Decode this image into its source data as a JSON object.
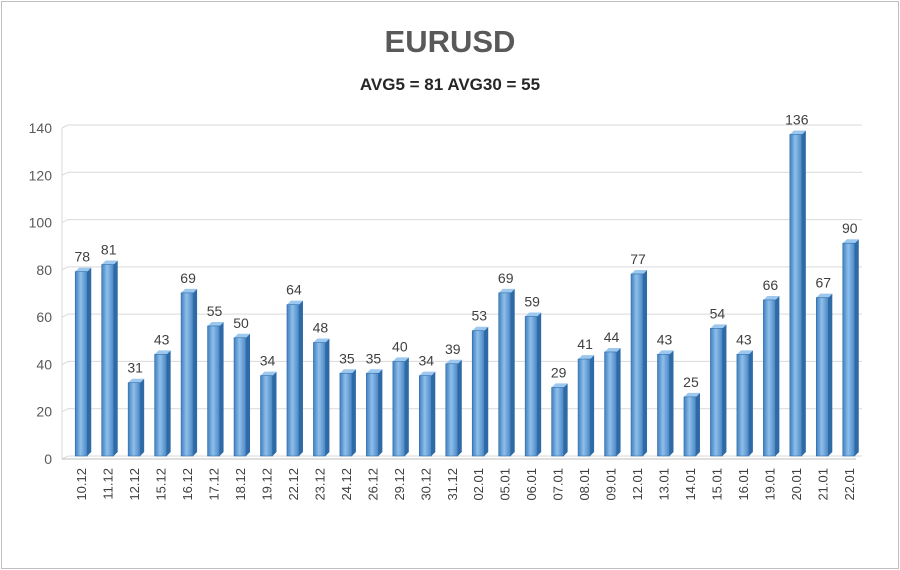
{
  "chart_data": {
    "type": "bar",
    "title": "EURUSD",
    "subtitle": "AVG5 = 81 AVG30 = 55",
    "xlabel": "",
    "ylabel": "",
    "ylim": [
      0,
      140
    ],
    "yticks": [
      0,
      20,
      40,
      60,
      80,
      100,
      120,
      140
    ],
    "grid": true,
    "bar_color": "#5b9bd5",
    "categories": [
      "10.12",
      "11.12",
      "12.12",
      "15.12",
      "16.12",
      "17.12",
      "18.12",
      "19.12",
      "22.12",
      "23.12",
      "24.12",
      "26.12",
      "29.12",
      "30.12",
      "31.12",
      "02.01",
      "05.01",
      "06.01",
      "07.01",
      "08.01",
      "09.01",
      "12.01",
      "13.01",
      "14.01",
      "15.01",
      "16.01",
      "19.01",
      "20.01",
      "21.01",
      "22.01"
    ],
    "values": [
      78,
      81,
      31,
      43,
      69,
      55,
      50,
      34,
      64,
      48,
      35,
      35,
      40,
      34,
      39,
      53,
      69,
      59,
      29,
      41,
      44,
      77,
      43,
      25,
      54,
      43,
      66,
      136,
      67,
      90
    ]
  }
}
